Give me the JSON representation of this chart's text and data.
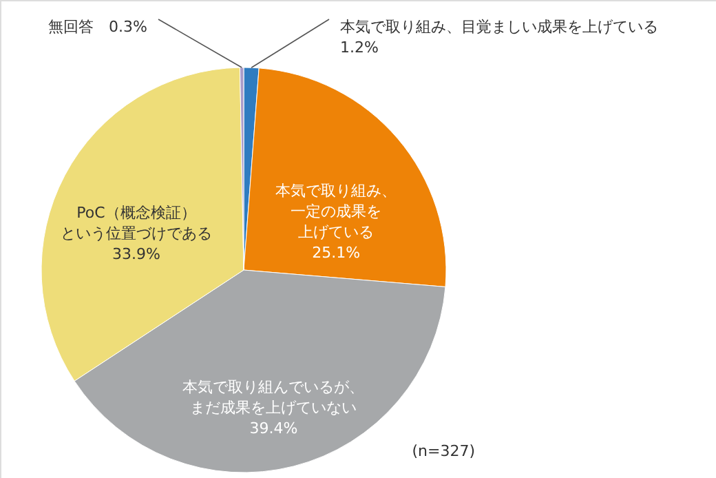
{
  "chart_data": {
    "type": "pie",
    "categories": [
      "本気で取り組み、目覚ましい成果を上げている",
      "本気で取り組み、一定の成果を上げている",
      "本気で取り組んでいるが、まだ成果を上げていない",
      "PoC（概念検証）という位置づけである",
      "無回答"
    ],
    "values": [
      1.2,
      25.1,
      39.4,
      33.9,
      0.3
    ],
    "value_labels": [
      "1.2%",
      "25.1%",
      "39.4%",
      "33.9%",
      "0.3%"
    ],
    "colors": [
      "#2f7cc0",
      "#ee8307",
      "#a6a8aa",
      "#eedd79",
      "#a99cc9"
    ],
    "annotations": [
      "(n=327)"
    ]
  }
}
